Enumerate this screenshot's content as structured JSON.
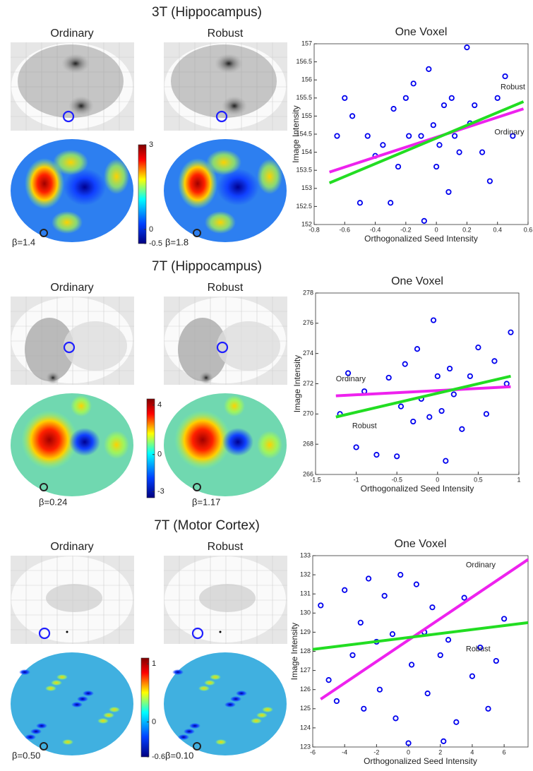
{
  "panels": [
    {
      "title": "3T (Hippocampus)",
      "maps": [
        {
          "label": "Ordinary",
          "beta": "β=1.4"
        },
        {
          "label": "Robust",
          "beta": "β=1.8"
        }
      ],
      "colorbar": {
        "lim": [
          -0.5,
          3
        ],
        "ticks": [
          -0.5,
          0,
          3
        ]
      }
    },
    {
      "title": "7T (Hippocampus)",
      "maps": [
        {
          "label": "Ordinary",
          "beta": "β=0.24"
        },
        {
          "label": "Robust",
          "beta": "β=1.17"
        }
      ],
      "colorbar": {
        "lim": [
          -3.5,
          4.5
        ],
        "ticks": [
          -3,
          0,
          4
        ]
      }
    },
    {
      "title": "7T (Motor Cortex)",
      "maps": [
        {
          "label": "Ordinary",
          "beta": "β=0.50"
        },
        {
          "label": "Robust",
          "beta": "β=0.10"
        }
      ],
      "colorbar": {
        "lim": [
          -0.6,
          1.1
        ],
        "ticks": [
          -0.6,
          0,
          1
        ]
      }
    }
  ],
  "chart_data": [
    {
      "type": "scatter",
      "title": "One Voxel",
      "xlabel": "Orthogonalized Seed Intensity",
      "ylabel": "Image Intensity",
      "xlim": [
        -0.8,
        0.6
      ],
      "ylim": [
        152,
        157
      ],
      "xticks": [
        -0.8,
        -0.6,
        -0.4,
        -0.2,
        0,
        0.2,
        0.4,
        0.6
      ],
      "yticks": [
        152,
        152.5,
        153,
        153.5,
        154,
        154.5,
        155,
        155.5,
        156,
        156.5,
        157
      ],
      "points": {
        "color": "#0000ee",
        "x": [
          -0.65,
          -0.6,
          -0.55,
          -0.5,
          -0.45,
          -0.4,
          -0.35,
          -0.3,
          -0.28,
          -0.25,
          -0.2,
          -0.18,
          -0.15,
          -0.1,
          -0.08,
          -0.05,
          -0.02,
          0,
          0.02,
          0.05,
          0.08,
          0.1,
          0.12,
          0.15,
          0.2,
          0.22,
          0.25,
          0.3,
          0.35,
          0.4,
          0.45,
          0.5
        ],
        "y": [
          154.45,
          155.5,
          155,
          152.6,
          154.45,
          153.9,
          154.2,
          152.6,
          155.2,
          153.6,
          155.5,
          154.45,
          155.9,
          154.45,
          152.1,
          156.3,
          154.75,
          153.6,
          154.2,
          155.3,
          152.9,
          155.5,
          154.45,
          154,
          156.9,
          154.8,
          155.3,
          154,
          153.2,
          155.5,
          156.1,
          154.45
        ]
      },
      "series": [
        {
          "name": "Ordinary",
          "color": "#ee22ee",
          "x": [
            -0.7,
            0.57
          ],
          "values": [
            153.45,
            155.2
          ]
        },
        {
          "name": "Robust",
          "color": "#22dd22",
          "x": [
            -0.7,
            0.57
          ],
          "values": [
            153.15,
            155.4
          ]
        }
      ]
    },
    {
      "type": "scatter",
      "title": "One Voxel",
      "xlabel": "Orthogonalized Seed Intensity",
      "ylabel": "Image Intensity",
      "xlim": [
        -1.5,
        1
      ],
      "ylim": [
        266,
        278
      ],
      "xticks": [
        -1.5,
        -1,
        -0.5,
        0,
        0.5,
        1
      ],
      "yticks": [
        266,
        268,
        270,
        272,
        274,
        276,
        278
      ],
      "points": {
        "color": "#0000ee",
        "x": [
          -1.2,
          -1.1,
          -1,
          -0.9,
          -0.75,
          -0.6,
          -0.5,
          -0.45,
          -0.4,
          -0.3,
          -0.25,
          -0.2,
          -0.1,
          -0.05,
          0,
          0.05,
          0.1,
          0.15,
          0.2,
          0.3,
          0.4,
          0.5,
          0.6,
          0.7,
          0.85,
          0.9
        ],
        "y": [
          270,
          272.7,
          267.8,
          271.5,
          267.3,
          272.4,
          267.2,
          270.5,
          273.3,
          269.5,
          274.3,
          271,
          269.8,
          276.2,
          272.5,
          270.2,
          266.9,
          273,
          271.3,
          269,
          272.5,
          274.4,
          270,
          273.5,
          272,
          275.4
        ]
      },
      "series": [
        {
          "name": "Ordinary",
          "color": "#ee22ee",
          "x": [
            -1.25,
            0.9
          ],
          "values": [
            271.2,
            271.8
          ]
        },
        {
          "name": "Robust",
          "color": "#22dd22",
          "x": [
            -1.25,
            0.9
          ],
          "values": [
            269.8,
            272.5
          ]
        }
      ]
    },
    {
      "type": "scatter",
      "title": "One Voxel",
      "xlabel": "Orthogonalized Seed Intensity",
      "ylabel": "Image Intensity",
      "xlim": [
        -6,
        7.5
      ],
      "ylim": [
        123,
        133
      ],
      "xticks": [
        -6,
        -4,
        -2,
        0,
        2,
        4,
        6
      ],
      "yticks": [
        123,
        124,
        125,
        126,
        127,
        128,
        129,
        130,
        131,
        132,
        133
      ],
      "points": {
        "color": "#0000ee",
        "x": [
          -5.5,
          -5,
          -4.5,
          -4,
          -3.5,
          -3,
          -2.8,
          -2.5,
          -2,
          -1.8,
          -1.5,
          -1,
          -0.8,
          -0.5,
          0,
          0.2,
          0.5,
          1,
          1.2,
          1.5,
          2,
          2.2,
          2.5,
          3,
          3.5,
          4,
          4.5,
          5,
          5.5,
          6
        ],
        "y": [
          130.4,
          126.5,
          125.4,
          131.2,
          127.8,
          129.5,
          125,
          131.8,
          128.5,
          126,
          130.9,
          128.9,
          124.5,
          132,
          123.2,
          127.3,
          131.5,
          129,
          125.8,
          130.3,
          127.8,
          123.3,
          128.6,
          124.3,
          130.8,
          126.7,
          128.2,
          125,
          127.5,
          129.7
        ]
      },
      "series": [
        {
          "name": "Ordinary",
          "color": "#ee22ee",
          "x": [
            -5.5,
            7.5
          ],
          "values": [
            125.5,
            132.8
          ]
        },
        {
          "name": "Robust",
          "color": "#22dd22",
          "x": [
            -6,
            7.5
          ],
          "values": [
            128.1,
            129.5
          ]
        }
      ]
    }
  ]
}
